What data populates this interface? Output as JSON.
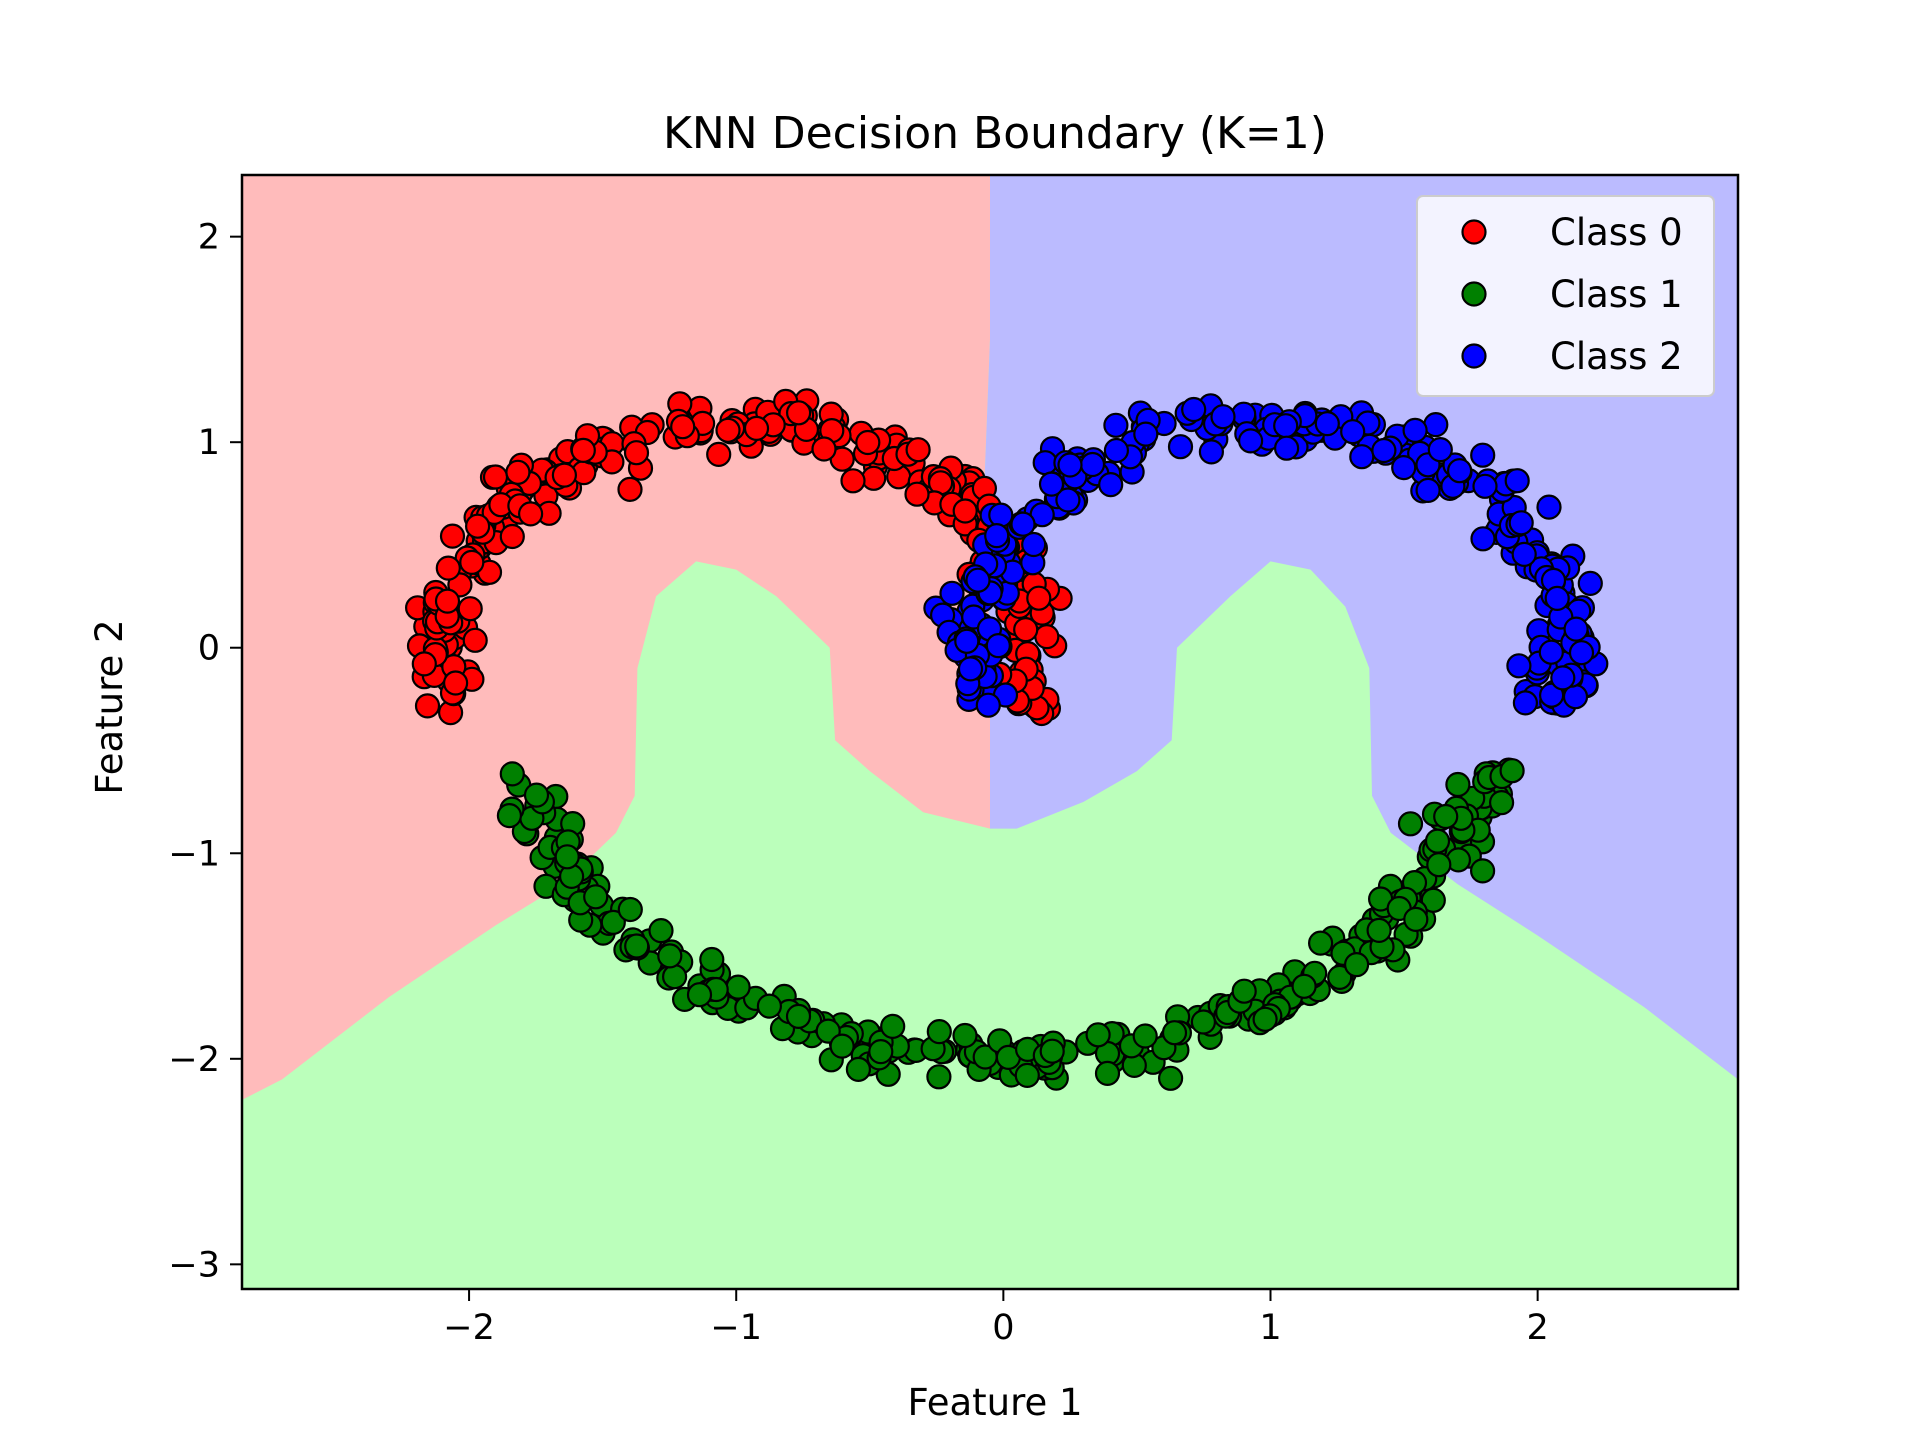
{
  "chart_data": {
    "type": "scatter",
    "title": "KNN Decision Boundary (K=1)",
    "xlabel": "Feature 1",
    "ylabel": "Feature 2",
    "xlim": [
      -2.85,
      2.75
    ],
    "ylim": [
      -3.12,
      2.3
    ],
    "x_ticks": [
      -2,
      -1,
      0,
      1,
      2
    ],
    "x_tick_labels": [
      "−2",
      "−1",
      "0",
      "1",
      "2"
    ],
    "y_ticks": [
      -3,
      -2,
      -1,
      0,
      1,
      2
    ],
    "y_tick_labels": [
      "−3",
      "−2",
      "−1",
      "0",
      "1",
      "2"
    ],
    "grid": false,
    "legend_position": "top-right",
    "region_colors": [
      "#ffbbbb",
      "#bbffbb",
      "#bbbbff"
    ],
    "series": [
      {
        "name": "Class 0",
        "color": "#ff0000",
        "shape": "upper arc",
        "center": [
          -1.0,
          0.0
        ],
        "radius": 1.1,
        "angle_range_deg": [
          -15,
          195
        ],
        "point_count": 300
      },
      {
        "name": "Class 1",
        "color": "#008000",
        "shape": "lower arc",
        "center": [
          0.0,
          -0.1
        ],
        "radius": 1.9,
        "angle_range_deg": [
          195,
          345
        ],
        "point_count": 300
      },
      {
        "name": "Class 2",
        "color": "#0000ff",
        "shape": "upper arc",
        "center": [
          1.0,
          0.0
        ],
        "radius": 1.1,
        "angle_range_deg": [
          -15,
          195
        ],
        "point_count": 300
      }
    ],
    "decision_boundary": {
      "left_region": "Class 0",
      "bottom_region": "Class 1",
      "right_region": "Class 2",
      "red_green_boundary": [
        [
          -2.85,
          -2.2
        ],
        [
          -2.7,
          -2.1
        ],
        [
          -2.3,
          -1.7
        ],
        [
          -1.9,
          -1.35
        ],
        [
          -1.65,
          -1.15
        ],
        [
          -1.45,
          -0.9
        ],
        [
          -1.38,
          -0.72
        ],
        [
          -1.37,
          -0.1
        ],
        [
          -1.3,
          0.25
        ],
        [
          -1.15,
          0.42
        ],
        [
          -1.0,
          0.38
        ],
        [
          -0.85,
          0.25
        ],
        [
          -0.65,
          0.0
        ],
        [
          -0.63,
          -0.45
        ],
        [
          -0.5,
          -0.6
        ],
        [
          -0.3,
          -0.8
        ],
        [
          -0.05,
          -0.88
        ]
      ],
      "red_blue_boundary": [
        [
          -0.05,
          2.3
        ],
        [
          -0.05,
          1.5
        ],
        [
          -0.08,
          0.5
        ],
        [
          -0.05,
          0.1
        ],
        [
          -0.05,
          -0.88
        ]
      ],
      "blue_green_boundary": [
        [
          -0.05,
          -0.88
        ],
        [
          0.05,
          -0.88
        ],
        [
          0.3,
          -0.75
        ],
        [
          0.5,
          -0.6
        ],
        [
          0.63,
          -0.45
        ],
        [
          0.65,
          0.0
        ],
        [
          0.85,
          0.25
        ],
        [
          1.0,
          0.42
        ],
        [
          1.15,
          0.38
        ],
        [
          1.28,
          0.2
        ],
        [
          1.37,
          -0.1
        ],
        [
          1.38,
          -0.72
        ],
        [
          1.45,
          -0.9
        ],
        [
          1.7,
          -1.15
        ],
        [
          2.0,
          -1.4
        ],
        [
          2.4,
          -1.75
        ],
        [
          2.75,
          -2.1
        ]
      ]
    }
  }
}
